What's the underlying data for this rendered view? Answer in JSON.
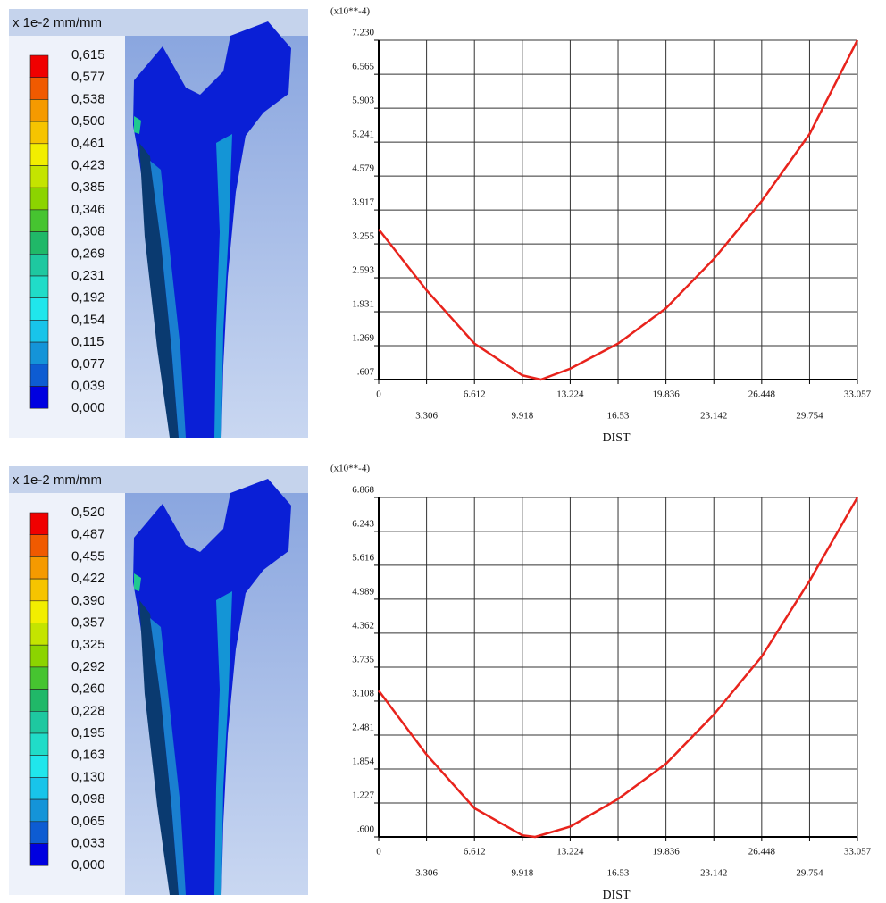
{
  "legends": [
    {
      "unit": "x 1e-2 mm/mm",
      "labels": [
        "0,615",
        "0,577",
        "0,538",
        "0,500",
        "0,461",
        "0,423",
        "0,385",
        "0,346",
        "0,308",
        "0,269",
        "0,231",
        "0,192",
        "0,154",
        "0,115",
        "0,077",
        "0,039",
        "0,000"
      ],
      "colors": [
        "#f00000",
        "#f05a00",
        "#f59a00",
        "#f6c400",
        "#f2ee00",
        "#c4e400",
        "#8cd400",
        "#46c430",
        "#20b868",
        "#1ec8a0",
        "#20dcc8",
        "#20e6ec",
        "#18c4ea",
        "#1494d8",
        "#0d5cd2",
        "#0000e0"
      ]
    },
    {
      "unit": "x 1e-2 mm/mm",
      "labels": [
        "0,520",
        "0,487",
        "0,455",
        "0,422",
        "0,390",
        "0,357",
        "0,325",
        "0,292",
        "0,260",
        "0,228",
        "0,195",
        "0,163",
        "0,130",
        "0,098",
        "0,065",
        "0,033",
        "0,000"
      ],
      "colors": [
        "#f00000",
        "#f05a00",
        "#f59a00",
        "#f6c400",
        "#f2ee00",
        "#c4e400",
        "#8cd400",
        "#46c430",
        "#20b868",
        "#1ec8a0",
        "#20dcc8",
        "#20e6ec",
        "#18c4ea",
        "#1494d8",
        "#0d5cd2",
        "#0000e0"
      ]
    }
  ],
  "chart_data": [
    {
      "type": "line",
      "y_unit_label": "(x10**-4)",
      "x_label": "DIST",
      "color": "#e8231c",
      "grid": true,
      "x": [
        0,
        3.306,
        6.612,
        9.918,
        11.2,
        13.224,
        16.53,
        19.836,
        23.142,
        26.448,
        29.754,
        33.057
      ],
      "values": [
        3.54,
        2.35,
        1.31,
        0.69,
        0.607,
        0.82,
        1.31,
        2.0,
        2.96,
        4.09,
        5.4,
        7.23
      ],
      "xlim": [
        0,
        33.057
      ],
      "xticks": [
        0,
        3.306,
        6.612,
        9.918,
        13.224,
        16.53,
        19.836,
        23.142,
        26.448,
        29.754,
        33.057
      ],
      "ylim": [
        0.607,
        7.23
      ],
      "yticks": [
        {
          "value": 0.607,
          "label": ".607"
        },
        1.269,
        1.931,
        2.593,
        3.255,
        3.917,
        4.579,
        5.241,
        5.903,
        6.565,
        {
          "value": 7.23,
          "label": "7.230"
        }
      ]
    },
    {
      "type": "line",
      "y_unit_label": "(x10**-4)",
      "x_label": "DIST",
      "color": "#e8231c",
      "grid": true,
      "x": [
        0,
        3.306,
        6.612,
        9.918,
        10.8,
        13.224,
        16.53,
        19.836,
        23.142,
        26.448,
        29.754,
        33.057
      ],
      "values": [
        3.3,
        2.12,
        1.13,
        0.63,
        0.6,
        0.79,
        1.3,
        1.95,
        2.86,
        3.93,
        5.33,
        6.868
      ],
      "xlim": [
        0,
        33.057
      ],
      "xticks": [
        0,
        3.306,
        6.612,
        9.918,
        13.224,
        16.53,
        19.836,
        23.142,
        26.448,
        29.754,
        33.057
      ],
      "ylim": [
        0.6,
        6.868
      ],
      "yticks": [
        {
          "value": 0.6,
          "label": ".600"
        },
        1.227,
        1.854,
        2.481,
        3.108,
        3.735,
        4.362,
        4.989,
        5.616,
        6.243,
        6.868
      ]
    }
  ]
}
